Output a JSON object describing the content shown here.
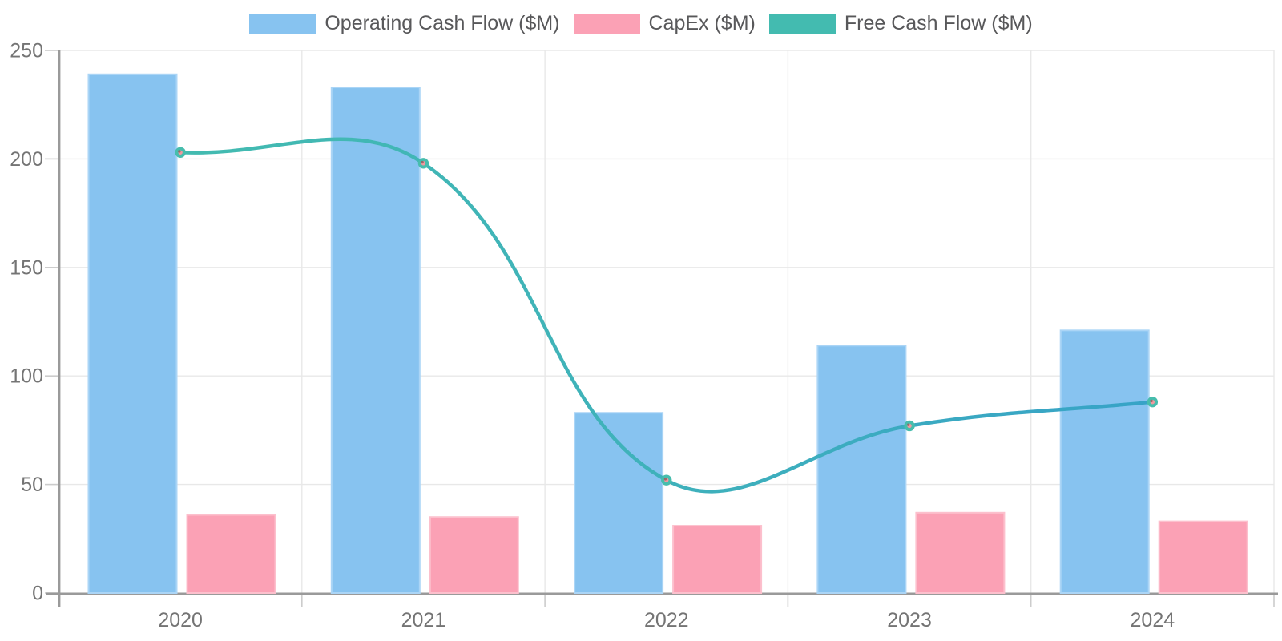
{
  "chart_data": {
    "type": "bar+line",
    "title": "",
    "xlabel": "",
    "ylabel": "",
    "categories": [
      "2020",
      "2021",
      "2022",
      "2023",
      "2024"
    ],
    "series": [
      {
        "name": "Operating Cash Flow ($M)",
        "type": "bar",
        "color": "#87C3F0",
        "border_color": "#ABD5F6",
        "values": [
          239,
          233,
          83,
          114,
          121
        ]
      },
      {
        "name": "CapEx ($M)",
        "type": "bar",
        "color": "#FBA1B5",
        "border_color": "#FCC0CD",
        "values": [
          36,
          35,
          31,
          37,
          33
        ]
      },
      {
        "name": "Free Cash Flow ($M)",
        "type": "line",
        "color": "#43BBB0",
        "color_end": "#37A3C7",
        "marker_fill": "#F09AA0",
        "marker_ring": "#47BDAD",
        "marker_dot": "#91605F",
        "line_width": 4.5,
        "line_tension": 0.4,
        "values": [
          203,
          198,
          52,
          77,
          88
        ]
      }
    ],
    "ylim": [
      0,
      250
    ],
    "yticks": [
      0,
      50,
      100,
      150,
      200,
      250
    ],
    "ytick_labels": [
      "0",
      "50",
      "100",
      "150",
      "200",
      "250"
    ],
    "grid": true,
    "legend_position": "top"
  },
  "style": {
    "background": "#FFFFFF",
    "grid_color": "#E8E8E8",
    "tick_color": "#CCCCCC",
    "axis_color": "#9A9A9A",
    "axis_label_color": "#747474",
    "legend_text_color": "#58585A"
  }
}
